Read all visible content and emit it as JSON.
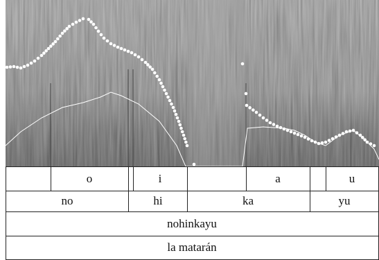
{
  "tiers": [
    [
      "o",
      "i",
      "a",
      "u"
    ],
    [
      "no",
      "hi",
      "ka",
      "yu"
    ],
    [
      "nohinkayu"
    ],
    [
      "la matarán"
    ]
  ]
}
